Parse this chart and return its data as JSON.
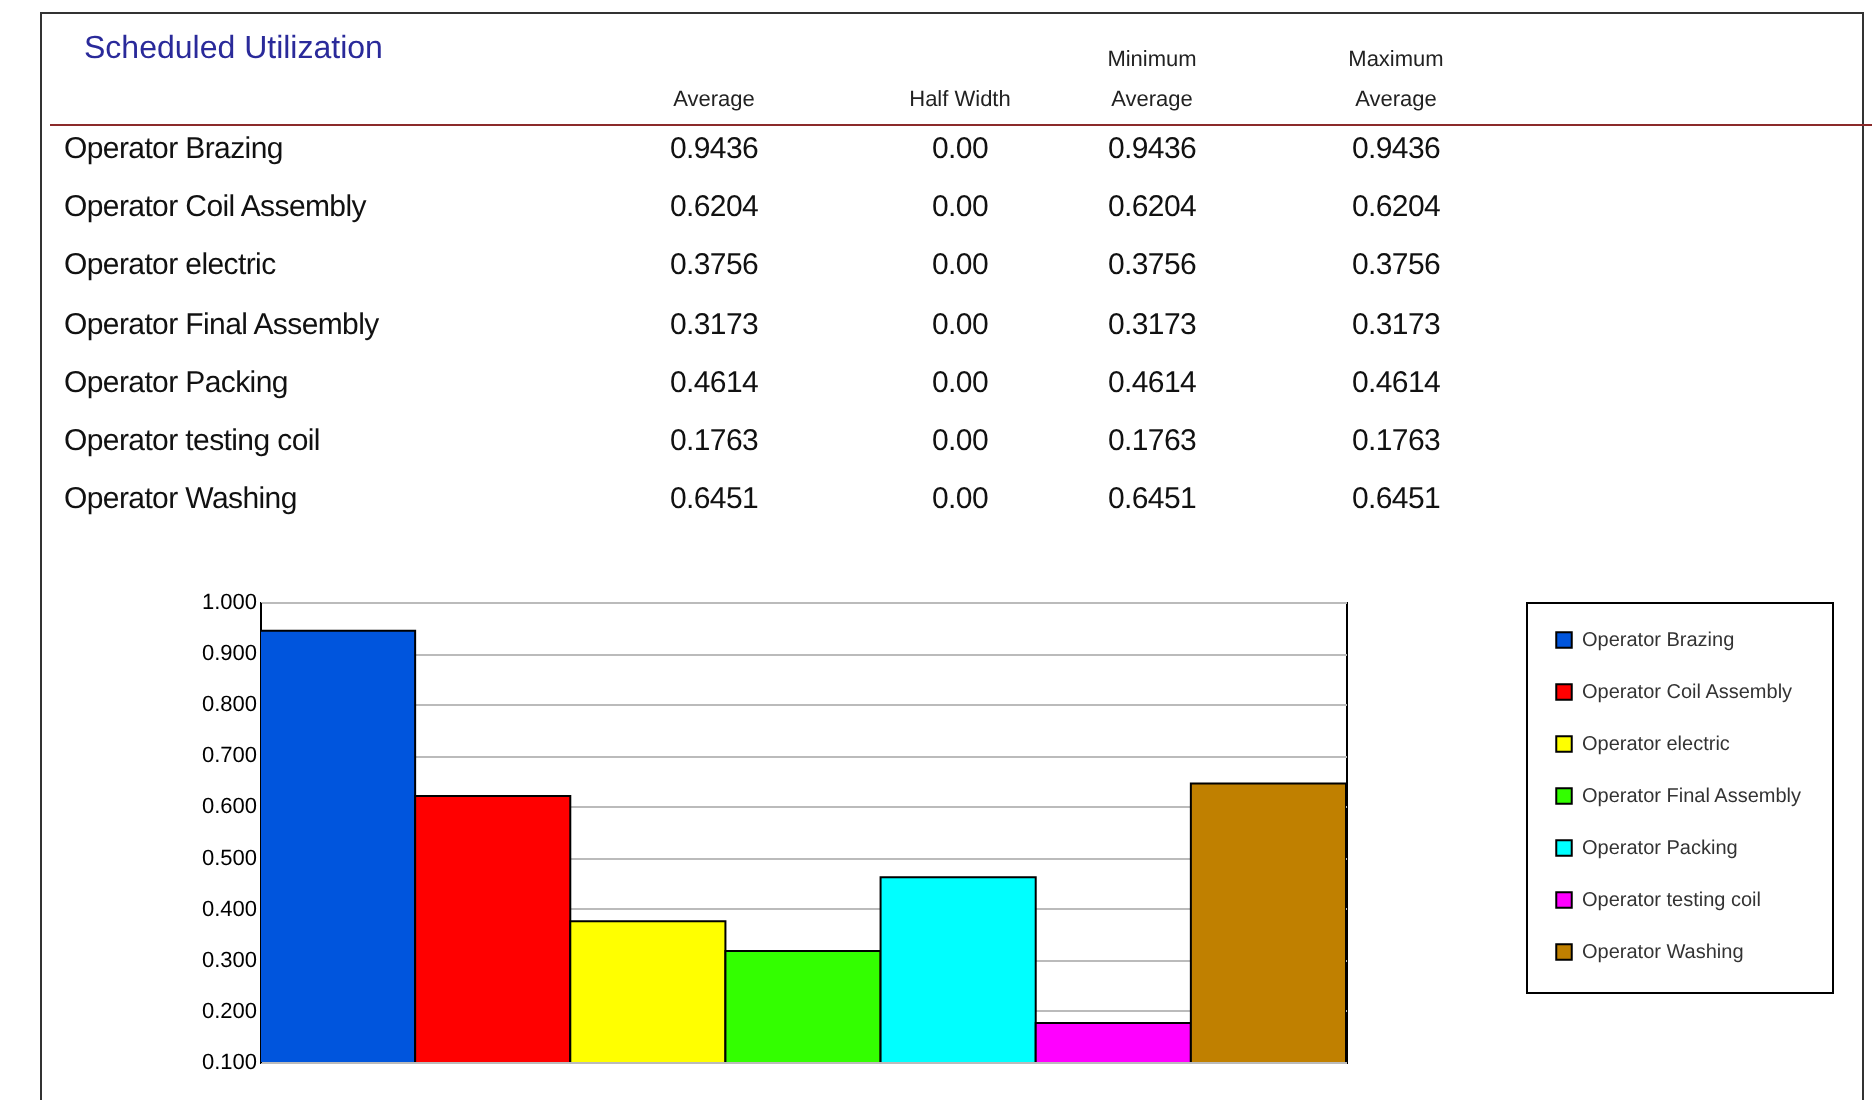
{
  "chart_data": [
    {
      "type": "other",
      "title": "Scheduled Utilization",
      "annotations": [
        "Average",
        "Half Width",
        "Minimum Average",
        "Maximum Average",
        "Operator Brazing",
        "0.9436",
        "0.00",
        "0.9436",
        "0.9436",
        "Operator Coil Assembly",
        "0.6204",
        "0.00",
        "0.6204",
        "0.6204",
        "Operator electric",
        "0.3756",
        "0.00",
        "0.3756",
        "0.3756",
        "Operator Final Assembly",
        "0.3173",
        "0.00",
        "0.3173",
        "0.3173",
        "Operator Packing",
        "0.4614",
        "0.00",
        "0.4614",
        "0.4614",
        "Operator testing coil",
        "0.1763",
        "0.00",
        "0.1763",
        "0.1763",
        "Operator Washing",
        "0.6451",
        "0.00",
        "0.6451",
        "0.6451"
      ]
    },
    {
      "type": "bar",
      "categories": [
        null
      ],
      "series": [
        {
          "name": "Operator Brazing",
          "color": "#0055dd",
          "values": [
            0.9436
          ]
        },
        {
          "name": "Operator Coil Assembly",
          "color": "#ff0000",
          "values": [
            0.6204
          ]
        },
        {
          "name": "Operator electric",
          "color": "#ffff00",
          "values": [
            0.3756
          ]
        },
        {
          "name": "Operator Final Assembly",
          "color": "#33ff00",
          "values": [
            0.3173
          ]
        },
        {
          "name": "Operator Packing",
          "color": "#00ffff",
          "values": [
            0.4614
          ]
        },
        {
          "name": "Operator testing coil",
          "color": "#ff00ff",
          "values": [
            0.1763
          ]
        },
        {
          "name": "Operator Washing",
          "color": "#c08000",
          "values": [
            0.6451
          ]
        }
      ],
      "ylim": [
        0.1,
        1.0
      ],
      "yticks": [
        {
          "value": 0.1,
          "label": "0.100"
        },
        {
          "value": 0.2,
          "label": "0.200"
        },
        {
          "value": 0.3,
          "label": "0.300"
        },
        {
          "value": 0.4,
          "label": "0.400"
        },
        {
          "value": 0.5,
          "label": "0.500"
        },
        {
          "value": 0.6,
          "label": "0.600"
        },
        {
          "value": 0.7,
          "label": "0.700"
        },
        {
          "value": 0.8,
          "label": "0.800"
        },
        {
          "value": 0.9,
          "label": "0.900"
        },
        {
          "value": 1.0,
          "label": "1.000"
        }
      ],
      "grid": "y",
      "legend": "right"
    }
  ]
}
